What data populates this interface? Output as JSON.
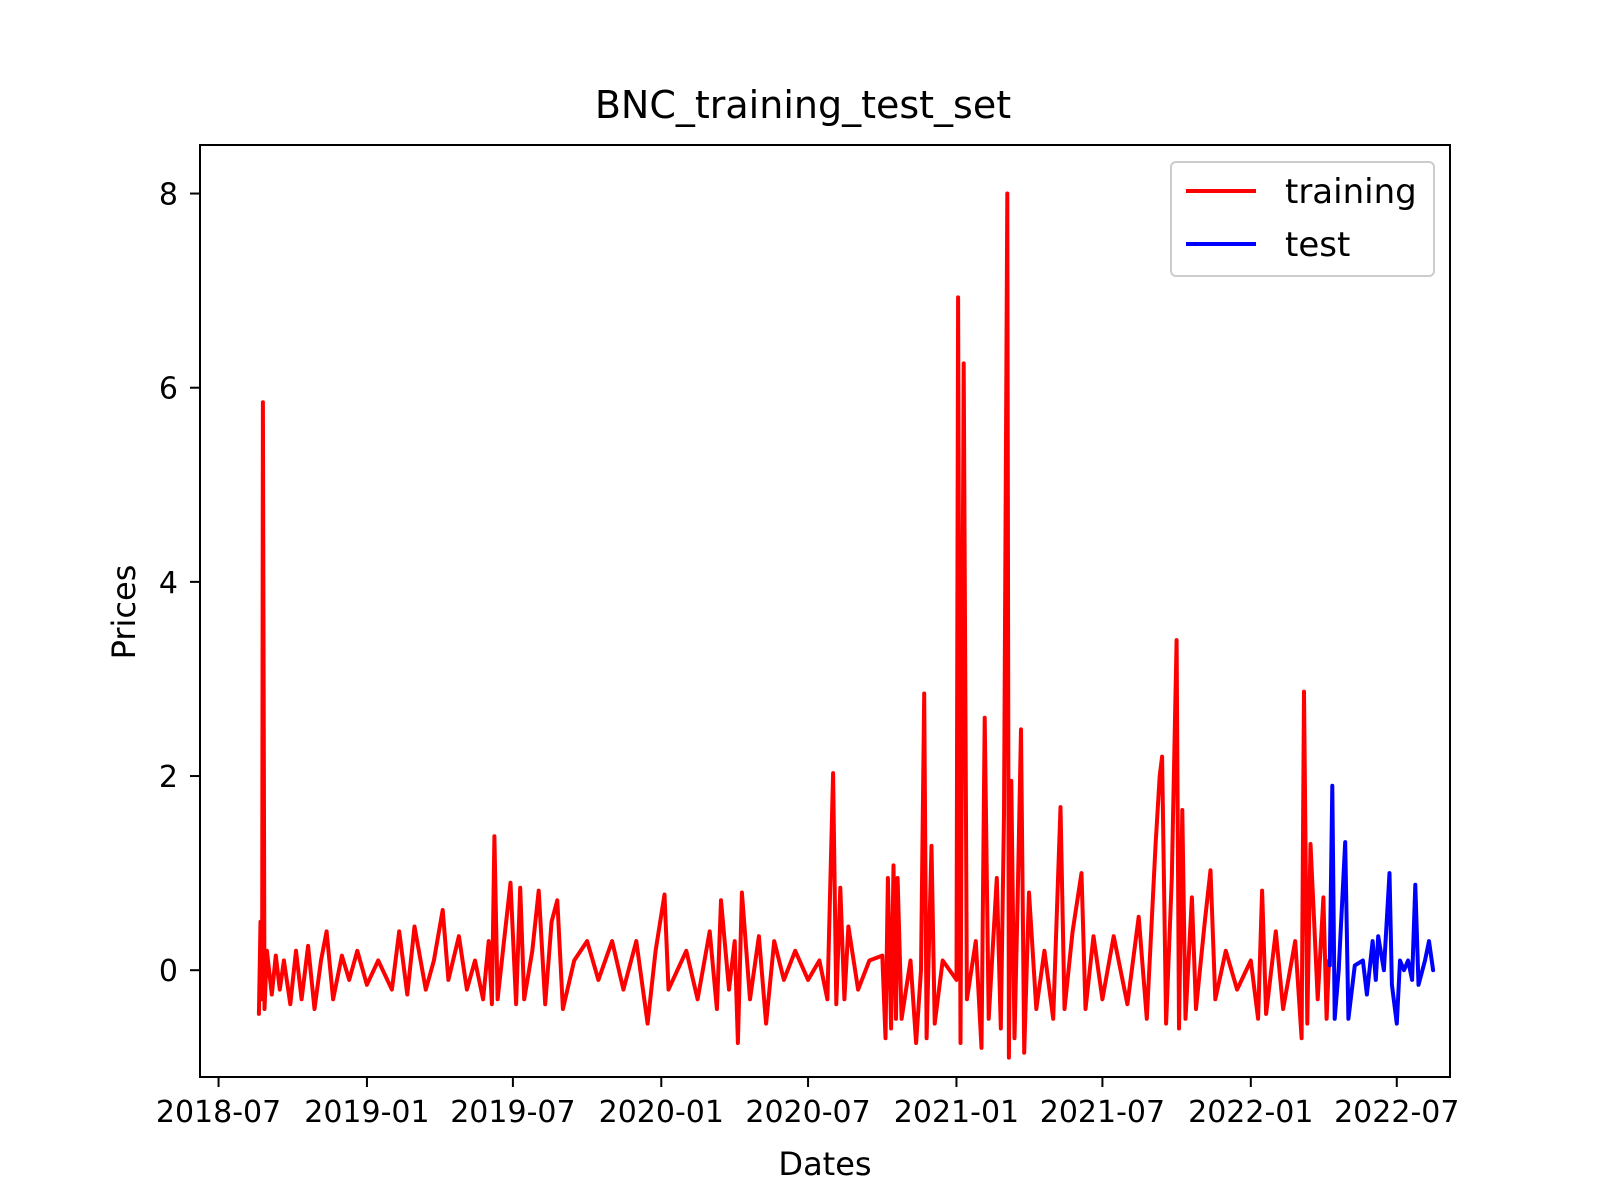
{
  "chart_data": {
    "type": "line",
    "title": "BNC_training_test_set",
    "xlabel": "Dates",
    "ylabel": "Prices",
    "xlim": [
      "2018-06-08",
      "2022-09-05"
    ],
    "ylim": [
      -1.1,
      8.5
    ],
    "x_ticks": [
      "2018-07",
      "2019-01",
      "2019-07",
      "2020-01",
      "2020-07",
      "2021-01",
      "2021-07",
      "2022-01",
      "2022-07"
    ],
    "x_tick_dates": [
      "2018-07-01",
      "2019-01-01",
      "2019-07-01",
      "2020-01-01",
      "2020-07-01",
      "2021-01-01",
      "2021-07-01",
      "2022-01-01",
      "2022-07-01"
    ],
    "y_ticks": [
      0,
      2,
      4,
      6,
      8
    ],
    "grid": false,
    "legend": {
      "position": "top-right",
      "entries": [
        {
          "label": "training",
          "color": "#ff0000"
        },
        {
          "label": "test",
          "color": "#0000ff"
        }
      ]
    },
    "series": [
      {
        "name": "training",
        "color": "#ff0000",
        "points": [
          [
            "2018-08-20",
            -0.45
          ],
          [
            "2018-08-22",
            0.5
          ],
          [
            "2018-08-24",
            -0.3
          ],
          [
            "2018-08-25",
            5.85
          ],
          [
            "2018-08-27",
            -0.4
          ],
          [
            "2018-08-30",
            0.2
          ],
          [
            "2018-09-05",
            -0.25
          ],
          [
            "2018-09-10",
            0.15
          ],
          [
            "2018-09-15",
            -0.2
          ],
          [
            "2018-09-20",
            0.1
          ],
          [
            "2018-09-28",
            -0.35
          ],
          [
            "2018-10-05",
            0.2
          ],
          [
            "2018-10-12",
            -0.3
          ],
          [
            "2018-10-20",
            0.25
          ],
          [
            "2018-10-28",
            -0.4
          ],
          [
            "2018-11-05",
            0.1
          ],
          [
            "2018-11-12",
            0.4
          ],
          [
            "2018-11-20",
            -0.3
          ],
          [
            "2018-12-01",
            0.15
          ],
          [
            "2018-12-10",
            -0.1
          ],
          [
            "2018-12-20",
            0.2
          ],
          [
            "2019-01-01",
            -0.15
          ],
          [
            "2019-01-15",
            0.1
          ],
          [
            "2019-02-01",
            -0.2
          ],
          [
            "2019-02-10",
            0.4
          ],
          [
            "2019-02-20",
            -0.25
          ],
          [
            "2019-03-01",
            0.45
          ],
          [
            "2019-03-15",
            -0.2
          ],
          [
            "2019-03-25",
            0.1
          ],
          [
            "2019-04-05",
            0.62
          ],
          [
            "2019-04-12",
            -0.1
          ],
          [
            "2019-04-25",
            0.35
          ],
          [
            "2019-05-05",
            -0.2
          ],
          [
            "2019-05-15",
            0.1
          ],
          [
            "2019-05-25",
            -0.3
          ],
          [
            "2019-06-01",
            0.3
          ],
          [
            "2019-06-05",
            -0.35
          ],
          [
            "2019-06-08",
            1.38
          ],
          [
            "2019-06-12",
            -0.3
          ],
          [
            "2019-06-20",
            0.3
          ],
          [
            "2019-06-28",
            0.9
          ],
          [
            "2019-07-05",
            -0.35
          ],
          [
            "2019-07-10",
            0.85
          ],
          [
            "2019-07-15",
            -0.3
          ],
          [
            "2019-07-25",
            0.2
          ],
          [
            "2019-08-02",
            0.82
          ],
          [
            "2019-08-10",
            -0.35
          ],
          [
            "2019-08-18",
            0.5
          ],
          [
            "2019-08-25",
            0.72
          ],
          [
            "2019-09-01",
            -0.4
          ],
          [
            "2019-09-15",
            0.1
          ],
          [
            "2019-10-01",
            0.3
          ],
          [
            "2019-10-15",
            -0.1
          ],
          [
            "2019-11-01",
            0.3
          ],
          [
            "2019-11-15",
            -0.2
          ],
          [
            "2019-12-01",
            0.3
          ],
          [
            "2019-12-15",
            -0.55
          ],
          [
            "2019-12-25",
            0.2
          ],
          [
            "2020-01-05",
            0.78
          ],
          [
            "2020-01-10",
            -0.2
          ],
          [
            "2020-02-01",
            0.2
          ],
          [
            "2020-02-15",
            -0.3
          ],
          [
            "2020-03-01",
            0.4
          ],
          [
            "2020-03-10",
            -0.4
          ],
          [
            "2020-03-15",
            0.72
          ],
          [
            "2020-03-25",
            -0.2
          ],
          [
            "2020-04-01",
            0.3
          ],
          [
            "2020-04-05",
            -0.75
          ],
          [
            "2020-04-10",
            0.8
          ],
          [
            "2020-04-20",
            -0.3
          ],
          [
            "2020-05-01",
            0.35
          ],
          [
            "2020-05-10",
            -0.55
          ],
          [
            "2020-05-20",
            0.3
          ],
          [
            "2020-06-01",
            -0.1
          ],
          [
            "2020-06-15",
            0.2
          ],
          [
            "2020-07-01",
            -0.1
          ],
          [
            "2020-07-15",
            0.1
          ],
          [
            "2020-07-25",
            -0.3
          ],
          [
            "2020-08-01",
            2.03
          ],
          [
            "2020-08-05",
            -0.35
          ],
          [
            "2020-08-10",
            0.85
          ],
          [
            "2020-08-15",
            -0.3
          ],
          [
            "2020-08-20",
            0.45
          ],
          [
            "2020-09-01",
            -0.2
          ],
          [
            "2020-09-15",
            0.1
          ],
          [
            "2020-10-01",
            0.15
          ],
          [
            "2020-10-05",
            -0.7
          ],
          [
            "2020-10-08",
            0.95
          ],
          [
            "2020-10-12",
            -0.6
          ],
          [
            "2020-10-15",
            1.08
          ],
          [
            "2020-10-18",
            -0.5
          ],
          [
            "2020-10-20",
            0.95
          ],
          [
            "2020-10-25",
            -0.5
          ],
          [
            "2020-11-05",
            0.1
          ],
          [
            "2020-11-12",
            -0.75
          ],
          [
            "2020-11-18",
            0.0
          ],
          [
            "2020-11-22",
            2.85
          ],
          [
            "2020-11-25",
            -0.7
          ],
          [
            "2020-12-01",
            1.28
          ],
          [
            "2020-12-05",
            -0.55
          ],
          [
            "2020-12-15",
            0.1
          ],
          [
            "2021-01-01",
            -0.1
          ],
          [
            "2021-01-03",
            6.93
          ],
          [
            "2021-01-06",
            -0.75
          ],
          [
            "2021-01-10",
            6.25
          ],
          [
            "2021-01-14",
            -0.3
          ],
          [
            "2021-01-25",
            0.3
          ],
          [
            "2021-02-01",
            -0.8
          ],
          [
            "2021-02-05",
            2.6
          ],
          [
            "2021-02-10",
            -0.5
          ],
          [
            "2021-02-20",
            0.95
          ],
          [
            "2021-02-25",
            -0.6
          ],
          [
            "2021-03-01",
            1.6
          ],
          [
            "2021-03-05",
            8.0
          ],
          [
            "2021-03-07",
            -0.9
          ],
          [
            "2021-03-10",
            1.95
          ],
          [
            "2021-03-14",
            -0.7
          ],
          [
            "2021-03-18",
            0.75
          ],
          [
            "2021-03-22",
            2.48
          ],
          [
            "2021-03-26",
            -0.85
          ],
          [
            "2021-04-01",
            0.8
          ],
          [
            "2021-04-10",
            -0.4
          ],
          [
            "2021-04-20",
            0.2
          ],
          [
            "2021-05-01",
            -0.5
          ],
          [
            "2021-05-10",
            1.68
          ],
          [
            "2021-05-15",
            -0.4
          ],
          [
            "2021-05-25",
            0.4
          ],
          [
            "2021-06-05",
            1.0
          ],
          [
            "2021-06-10",
            -0.4
          ],
          [
            "2021-06-20",
            0.35
          ],
          [
            "2021-07-01",
            -0.3
          ],
          [
            "2021-07-15",
            0.35
          ],
          [
            "2021-08-01",
            -0.35
          ],
          [
            "2021-08-15",
            0.55
          ],
          [
            "2021-08-25",
            -0.5
          ],
          [
            "2021-09-05",
            1.3
          ],
          [
            "2021-09-10",
            2.0
          ],
          [
            "2021-09-13",
            2.2
          ],
          [
            "2021-09-18",
            -0.55
          ],
          [
            "2021-09-25",
            0.95
          ],
          [
            "2021-10-01",
            3.4
          ],
          [
            "2021-10-04",
            -0.6
          ],
          [
            "2021-10-08",
            1.65
          ],
          [
            "2021-10-12",
            -0.5
          ],
          [
            "2021-10-20",
            0.75
          ],
          [
            "2021-10-25",
            -0.4
          ],
          [
            "2021-11-05",
            0.5
          ],
          [
            "2021-11-12",
            1.03
          ],
          [
            "2021-11-18",
            -0.3
          ],
          [
            "2021-12-01",
            0.2
          ],
          [
            "2021-12-15",
            -0.2
          ],
          [
            "2022-01-01",
            0.1
          ],
          [
            "2022-01-10",
            -0.5
          ],
          [
            "2022-01-15",
            0.82
          ],
          [
            "2022-01-20",
            -0.45
          ],
          [
            "2022-02-01",
            0.4
          ],
          [
            "2022-02-10",
            -0.4
          ],
          [
            "2022-02-25",
            0.3
          ],
          [
            "2022-03-05",
            -0.7
          ],
          [
            "2022-03-08",
            2.87
          ],
          [
            "2022-03-12",
            -0.55
          ],
          [
            "2022-03-16",
            1.3
          ],
          [
            "2022-03-20",
            0.6
          ],
          [
            "2022-03-25",
            -0.3
          ],
          [
            "2022-04-01",
            0.75
          ],
          [
            "2022-04-05",
            -0.5
          ],
          [
            "2022-04-08",
            0.1
          ]
        ]
      },
      {
        "name": "test",
        "color": "#0000ff",
        "points": [
          [
            "2022-04-09",
            0.05
          ],
          [
            "2022-04-12",
            1.9
          ],
          [
            "2022-04-15",
            -0.5
          ],
          [
            "2022-04-20",
            0.0
          ],
          [
            "2022-04-28",
            1.32
          ],
          [
            "2022-05-02",
            -0.5
          ],
          [
            "2022-05-10",
            0.05
          ],
          [
            "2022-05-20",
            0.1
          ],
          [
            "2022-05-25",
            -0.25
          ],
          [
            "2022-06-01",
            0.3
          ],
          [
            "2022-06-05",
            -0.1
          ],
          [
            "2022-06-08",
            0.35
          ],
          [
            "2022-06-15",
            0.0
          ],
          [
            "2022-06-22",
            1.0
          ],
          [
            "2022-06-25",
            -0.15
          ],
          [
            "2022-07-01",
            -0.55
          ],
          [
            "2022-07-05",
            0.1
          ],
          [
            "2022-07-10",
            0.0
          ],
          [
            "2022-07-15",
            0.1
          ],
          [
            "2022-07-20",
            -0.1
          ],
          [
            "2022-07-24",
            0.88
          ],
          [
            "2022-07-28",
            -0.15
          ],
          [
            "2022-08-05",
            0.1
          ],
          [
            "2022-08-10",
            0.3
          ],
          [
            "2022-08-15",
            0.0
          ]
        ]
      }
    ]
  }
}
